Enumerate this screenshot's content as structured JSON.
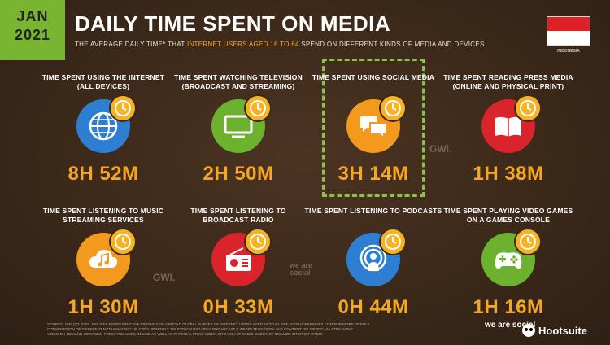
{
  "header": {
    "month": "JAN",
    "year": "2021",
    "title": "DAILY TIME SPENT ON MEDIA",
    "subtitle_part1": "THE AVERAGE DAILY TIME* THAT ",
    "subtitle_highlight": "INTERNET USERS AGED 16 TO 64",
    "subtitle_part2": " SPEND ON DIFFERENT KINDS OF MEDIA AND DEVICES",
    "country": "INDONESIA"
  },
  "items": [
    {
      "label": "TIME SPENT USING THE INTERNET (ALL DEVICES)",
      "value": "8H 52M",
      "color": "#2e7fd1",
      "icon": "globe-icon"
    },
    {
      "label": "TIME SPENT WATCHING TELEVISION (BROADCAST AND STREAMING)",
      "value": "2H 50M",
      "color": "#6cb22f",
      "icon": "television-icon"
    },
    {
      "label": "TIME SPENT USING SOCIAL MEDIA",
      "value": "3H 14M",
      "color": "#f39a1e",
      "icon": "chat-bubbles-icon"
    },
    {
      "label": "TIME SPENT READING PRESS MEDIA (ONLINE AND PHYSICAL PRINT)",
      "value": "1H 38M",
      "color": "#d9242b",
      "icon": "open-book-icon"
    },
    {
      "label": "TIME SPENT LISTENING TO MUSIC STREAMING SERVICES",
      "value": "1H 30M",
      "color": "#f39a1e",
      "icon": "cloud-music-icon"
    },
    {
      "label": "TIME SPENT LISTENING TO BROADCAST RADIO",
      "value": "0H 33M",
      "color": "#d9242b",
      "icon": "radio-icon"
    },
    {
      "label": "TIME SPENT LISTENING TO PODCASTS",
      "value": "0H 44M",
      "color": "#2e7fd1",
      "icon": "podcast-icon"
    },
    {
      "label": "TIME SPENT PLAYING VIDEO GAMES ON A GAMES CONSOLE",
      "value": "1H 16M",
      "color": "#6cb22f",
      "icon": "gamepad-icon"
    }
  ],
  "watermarks": {
    "gwi": "GWI.",
    "we_are_social": "we are social"
  },
  "footnote": {
    "line1": "SOURCE: GWI (Q3 2020). FIGURES REPRESENT THE FINDINGS OF A BROAD GLOBAL SURVEY OF INTERNET USERS AGED 16 TO 64. SEE GLOBALWEBINDEX.COM FOR MORE DETAILS.",
    "line2": "CONSUMPTION OF DIFFERENT MEDIA MAY OCCUR CONCURRENTLY. TELEVISION INCLUDES BROADCAST (LINEAR) TELEVISION AND CONTENT DELIVERED VIA STREAMING",
    "line3": "VIDEO-ON-DEMAND SERVICES. PRESS INCLUDES ONLINE AS WELL AS PHYSICAL PRINT MEDIA. BROADCAST RADIO DOES NOT INCLUDE INTERNET RADIO."
  },
  "brand": {
    "we_are_social": "we are social",
    "hootsuite": "Hootsuite"
  }
}
